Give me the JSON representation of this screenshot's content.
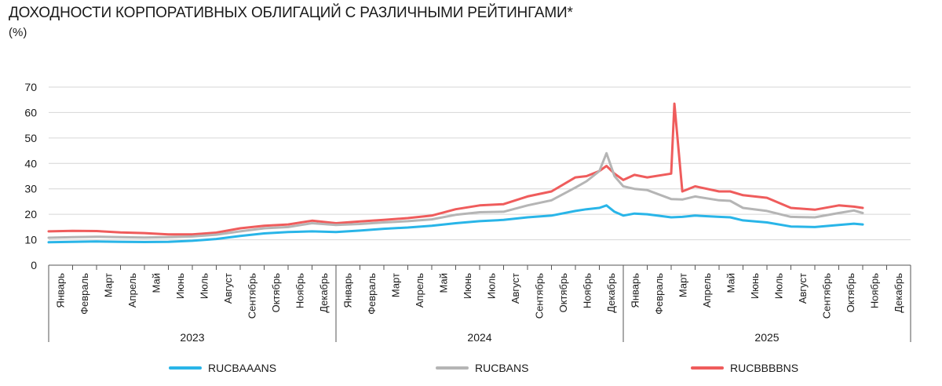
{
  "header": {
    "title": "ДОХОДНОСТИ КОРПОРАТИВНЫХ ОБЛИГАЦИЙ С РАЗЛИЧНЫМИ РЕЙТИНГАМИ*",
    "subtitle": "(%)"
  },
  "chart_data": {
    "type": "line",
    "title": "ДОХОДНОСТИ КОРПОРАТИВНЫХ ОБЛИГАЦИЙ С РАЗЛИЧНЫМИ РЕЙТИНГАМИ*",
    "ylabel": "(%)",
    "ylim": [
      0,
      70
    ],
    "yticks": [
      0,
      10,
      20,
      30,
      40,
      50,
      60,
      70
    ],
    "grid": true,
    "legend_position": "bottom",
    "x_unit": "month",
    "xlim": [
      "2023-01",
      "2025-12"
    ],
    "years": [
      "2023",
      "2024",
      "2025"
    ],
    "months": [
      "Январь",
      "Февраль",
      "Март",
      "Апрель",
      "Май",
      "Июнь",
      "Июль",
      "Август",
      "Сентябрь",
      "Октябрь",
      "Ноябрь",
      "Декабрь"
    ],
    "series": [
      {
        "name": "RUCBAAANS",
        "color": "#29b5e8",
        "points": [
          [
            "2023-01",
            9.0
          ],
          [
            "2023-02",
            9.2
          ],
          [
            "2023-03",
            9.3
          ],
          [
            "2023-04",
            9.2
          ],
          [
            "2023-05",
            9.1
          ],
          [
            "2023-06",
            9.2
          ],
          [
            "2023-07",
            9.6
          ],
          [
            "2023-08",
            10.3
          ],
          [
            "2023-09",
            11.5
          ],
          [
            "2023-10",
            12.5
          ],
          [
            "2023-11",
            13.0
          ],
          [
            "2023-12",
            13.3
          ],
          [
            "2024-01",
            13.0
          ],
          [
            "2024-02",
            13.6
          ],
          [
            "2024-03",
            14.3
          ],
          [
            "2024-04",
            14.8
          ],
          [
            "2024-05",
            15.5
          ],
          [
            "2024-06",
            16.5
          ],
          [
            "2024-07",
            17.3
          ],
          [
            "2024-08",
            17.8
          ],
          [
            "2024-09",
            18.8
          ],
          [
            "2024-10",
            19.5
          ],
          [
            "2024-11",
            21.3
          ],
          [
            "2024-11-15",
            22.0
          ],
          [
            "2024-12",
            22.5
          ],
          [
            "2024-12-10",
            23.5
          ],
          [
            "2024-12-20",
            21.0
          ],
          [
            "2025-01",
            19.5
          ],
          [
            "2025-01-15",
            20.3
          ],
          [
            "2025-02",
            20.0
          ],
          [
            "2025-03",
            18.8
          ],
          [
            "2025-03-15",
            19.0
          ],
          [
            "2025-04",
            19.5
          ],
          [
            "2025-05",
            19.0
          ],
          [
            "2025-05-15",
            18.8
          ],
          [
            "2025-06",
            17.6
          ],
          [
            "2025-07",
            16.8
          ],
          [
            "2025-08",
            15.2
          ],
          [
            "2025-09",
            15.0
          ],
          [
            "2025-10",
            15.8
          ],
          [
            "2025-10-20",
            16.3
          ],
          [
            "2025-11",
            16.0
          ]
        ]
      },
      {
        "name": "RUCBANS",
        "color": "#b5b5b5",
        "points": [
          [
            "2023-01",
            10.8
          ],
          [
            "2023-02",
            11.0
          ],
          [
            "2023-03",
            11.2
          ],
          [
            "2023-04",
            11.0
          ],
          [
            "2023-05",
            10.9
          ],
          [
            "2023-06",
            11.0
          ],
          [
            "2023-07",
            11.3
          ],
          [
            "2023-08",
            12.0
          ],
          [
            "2023-09",
            13.3
          ],
          [
            "2023-10",
            14.5
          ],
          [
            "2023-11",
            15.0
          ],
          [
            "2023-12",
            16.5
          ],
          [
            "2024-01",
            15.8
          ],
          [
            "2024-02",
            16.2
          ],
          [
            "2024-03",
            16.8
          ],
          [
            "2024-04",
            17.3
          ],
          [
            "2024-05",
            18.0
          ],
          [
            "2024-06",
            19.8
          ],
          [
            "2024-07",
            20.8
          ],
          [
            "2024-08",
            21.0
          ],
          [
            "2024-09",
            23.5
          ],
          [
            "2024-10",
            25.5
          ],
          [
            "2024-11",
            30.5
          ],
          [
            "2024-11-15",
            33.0
          ],
          [
            "2024-12",
            37.0
          ],
          [
            "2024-12-10",
            44.0
          ],
          [
            "2024-12-20",
            35.0
          ],
          [
            "2025-01",
            31.0
          ],
          [
            "2025-01-15",
            30.0
          ],
          [
            "2025-02",
            29.5
          ],
          [
            "2025-03",
            26.0
          ],
          [
            "2025-03-15",
            25.8
          ],
          [
            "2025-04",
            27.0
          ],
          [
            "2025-05",
            25.5
          ],
          [
            "2025-05-15",
            25.3
          ],
          [
            "2025-06",
            22.5
          ],
          [
            "2025-07",
            21.3
          ],
          [
            "2025-08",
            19.0
          ],
          [
            "2025-09",
            18.8
          ],
          [
            "2025-10",
            20.5
          ],
          [
            "2025-10-20",
            21.5
          ],
          [
            "2025-11",
            20.5
          ]
        ]
      },
      {
        "name": "RUCBBBBNS",
        "color": "#ef5c5c",
        "points": [
          [
            "2023-01",
            13.3
          ],
          [
            "2023-02",
            13.5
          ],
          [
            "2023-03",
            13.4
          ],
          [
            "2023-04",
            12.9
          ],
          [
            "2023-05",
            12.6
          ],
          [
            "2023-06",
            12.1
          ],
          [
            "2023-07",
            12.1
          ],
          [
            "2023-08",
            12.8
          ],
          [
            "2023-09",
            14.5
          ],
          [
            "2023-10",
            15.5
          ],
          [
            "2023-11",
            16.0
          ],
          [
            "2023-12",
            17.5
          ],
          [
            "2024-01",
            16.5
          ],
          [
            "2024-02",
            17.2
          ],
          [
            "2024-03",
            17.8
          ],
          [
            "2024-04",
            18.5
          ],
          [
            "2024-05",
            19.5
          ],
          [
            "2024-06",
            22.0
          ],
          [
            "2024-07",
            23.5
          ],
          [
            "2024-08",
            24.0
          ],
          [
            "2024-09",
            27.0
          ],
          [
            "2024-10",
            29.0
          ],
          [
            "2024-11",
            34.5
          ],
          [
            "2024-11-15",
            35.0
          ],
          [
            "2024-12",
            37.0
          ],
          [
            "2024-12-10",
            39.0
          ],
          [
            "2024-12-20",
            36.0
          ],
          [
            "2025-01",
            33.5
          ],
          [
            "2025-01-15",
            35.5
          ],
          [
            "2025-02",
            34.5
          ],
          [
            "2025-03",
            36.0
          ],
          [
            "2025-03-05",
            63.5
          ],
          [
            "2025-03-15",
            29.0
          ],
          [
            "2025-04",
            31.0
          ],
          [
            "2025-05",
            29.0
          ],
          [
            "2025-05-15",
            29.0
          ],
          [
            "2025-06",
            27.5
          ],
          [
            "2025-07",
            26.5
          ],
          [
            "2025-08",
            22.5
          ],
          [
            "2025-09",
            21.8
          ],
          [
            "2025-10",
            23.5
          ],
          [
            "2025-10-20",
            23.0
          ],
          [
            "2025-11",
            22.5
          ]
        ]
      }
    ]
  }
}
